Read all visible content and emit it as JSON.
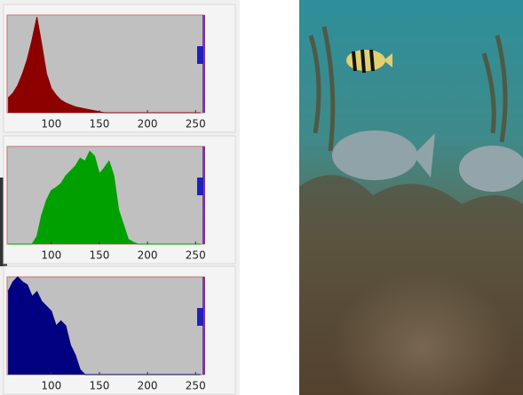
{
  "chart_data": [
    {
      "type": "area",
      "color": "#8c0000",
      "x": [
        55,
        60,
        65,
        70,
        75,
        80,
        85,
        90,
        95,
        100,
        105,
        110,
        115,
        120,
        125,
        130,
        135,
        140,
        145,
        150,
        155,
        160,
        165,
        170,
        175,
        180,
        185,
        190,
        195,
        200,
        205,
        210,
        215,
        220,
        225,
        230,
        235,
        240,
        245,
        250,
        255
      ],
      "values": [
        15,
        20,
        28,
        40,
        55,
        75,
        98,
        70,
        40,
        25,
        18,
        13,
        10,
        8,
        6,
        5,
        4,
        3,
        2,
        1,
        0,
        0,
        0,
        0,
        0,
        0,
        0,
        0,
        0,
        0,
        0,
        0,
        0,
        0,
        0,
        0,
        0,
        0,
        0,
        0,
        0
      ],
      "xlim": [
        54,
        259
      ],
      "ylim": [
        0,
        100
      ],
      "xticks": [
        100,
        150,
        200,
        250
      ]
    },
    {
      "type": "area",
      "color": "#00a000",
      "x": [
        55,
        60,
        65,
        70,
        75,
        80,
        85,
        90,
        95,
        100,
        105,
        110,
        115,
        120,
        125,
        130,
        135,
        140,
        145,
        150,
        155,
        160,
        165,
        170,
        175,
        180,
        185,
        190,
        195,
        200,
        205,
        210,
        215,
        220,
        225,
        230,
        235,
        240,
        245,
        250,
        255
      ],
      "values": [
        0,
        0,
        0,
        0,
        0,
        0,
        8,
        30,
        45,
        55,
        58,
        62,
        70,
        75,
        80,
        88,
        85,
        95,
        90,
        72,
        78,
        85,
        70,
        35,
        20,
        5,
        2,
        0,
        0,
        0,
        0,
        0,
        0,
        0,
        0,
        0,
        0,
        0,
        0,
        0,
        0
      ],
      "xlim": [
        54,
        259
      ],
      "ylim": [
        0,
        100
      ],
      "xticks": [
        100,
        150,
        200,
        250
      ]
    },
    {
      "type": "area",
      "color": "#000080",
      "x": [
        55,
        60,
        65,
        70,
        75,
        80,
        85,
        90,
        95,
        100,
        105,
        110,
        115,
        120,
        125,
        130,
        135,
        140,
        145,
        150,
        155,
        160,
        165,
        170,
        175,
        180,
        185,
        190,
        195,
        200,
        205,
        210,
        215,
        220,
        225,
        230,
        235,
        240,
        245,
        250,
        255
      ],
      "values": [
        85,
        95,
        100,
        95,
        92,
        80,
        85,
        75,
        70,
        65,
        50,
        55,
        50,
        30,
        20,
        5,
        0,
        0,
        0,
        0,
        0,
        0,
        0,
        0,
        0,
        0,
        0,
        0,
        0,
        0,
        0,
        0,
        0,
        0,
        0,
        0,
        0,
        0,
        0,
        0,
        0
      ],
      "xlim": [
        54,
        259
      ],
      "ylim": [
        0,
        100
      ],
      "xticks": [
        100,
        150,
        200,
        250
      ]
    }
  ]
}
